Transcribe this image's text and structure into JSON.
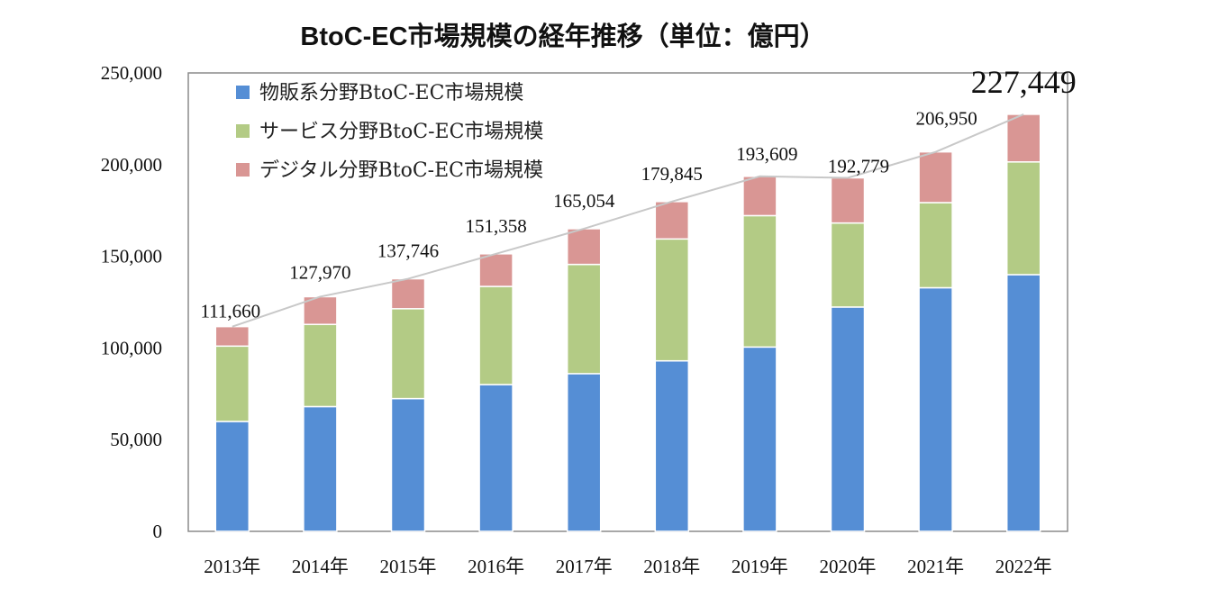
{
  "chart_data": {
    "type": "bar",
    "stacked": true,
    "title": "BtoC-EC市場規模の経年推移（単位：億円）",
    "categories": [
      "2013年",
      "2014年",
      "2015年",
      "2016年",
      "2017年",
      "2018年",
      "2019年",
      "2020年",
      "2021年",
      "2022年"
    ],
    "series": [
      {
        "name": "物販系分野BtoC-EC市場規模",
        "color": "#558ed5",
        "values": [
          59931,
          68043,
          72398,
          80043,
          86008,
          92992,
          100515,
          122333,
          132865,
          139997
        ]
      },
      {
        "name": "サービス分野BtoC-EC市場規模",
        "color": "#b3cb85",
        "values": [
          41094,
          44816,
          49014,
          53532,
          59568,
          66471,
          71672,
          45832,
          46424,
          61477
        ]
      },
      {
        "name": "デジタル分野BtoC-EC市場規模",
        "color": "#d99694",
        "values": [
          10635,
          15111,
          16334,
          17783,
          19478,
          20382,
          21422,
          24614,
          27661,
          25974
        ]
      }
    ],
    "totals": [
      111660,
      127970,
      137746,
      151358,
      165054,
      179845,
      193609,
      192779,
      206950,
      227449
    ],
    "total_labels": [
      "111,660",
      "127,970",
      "137,746",
      "151,358",
      "165,054",
      "179,845",
      "193,609",
      "192,779",
      "206,950",
      "227,449"
    ],
    "y_ticks": [
      0,
      50000,
      100000,
      150000,
      200000,
      250000
    ],
    "y_tick_labels": [
      "0",
      "50,000",
      "100,000",
      "150,000",
      "200,000",
      "250,000"
    ],
    "ylim": [
      0,
      250000
    ],
    "grid": false,
    "legend_position": "top-left",
    "total_line_color": "#c8c8c8"
  }
}
